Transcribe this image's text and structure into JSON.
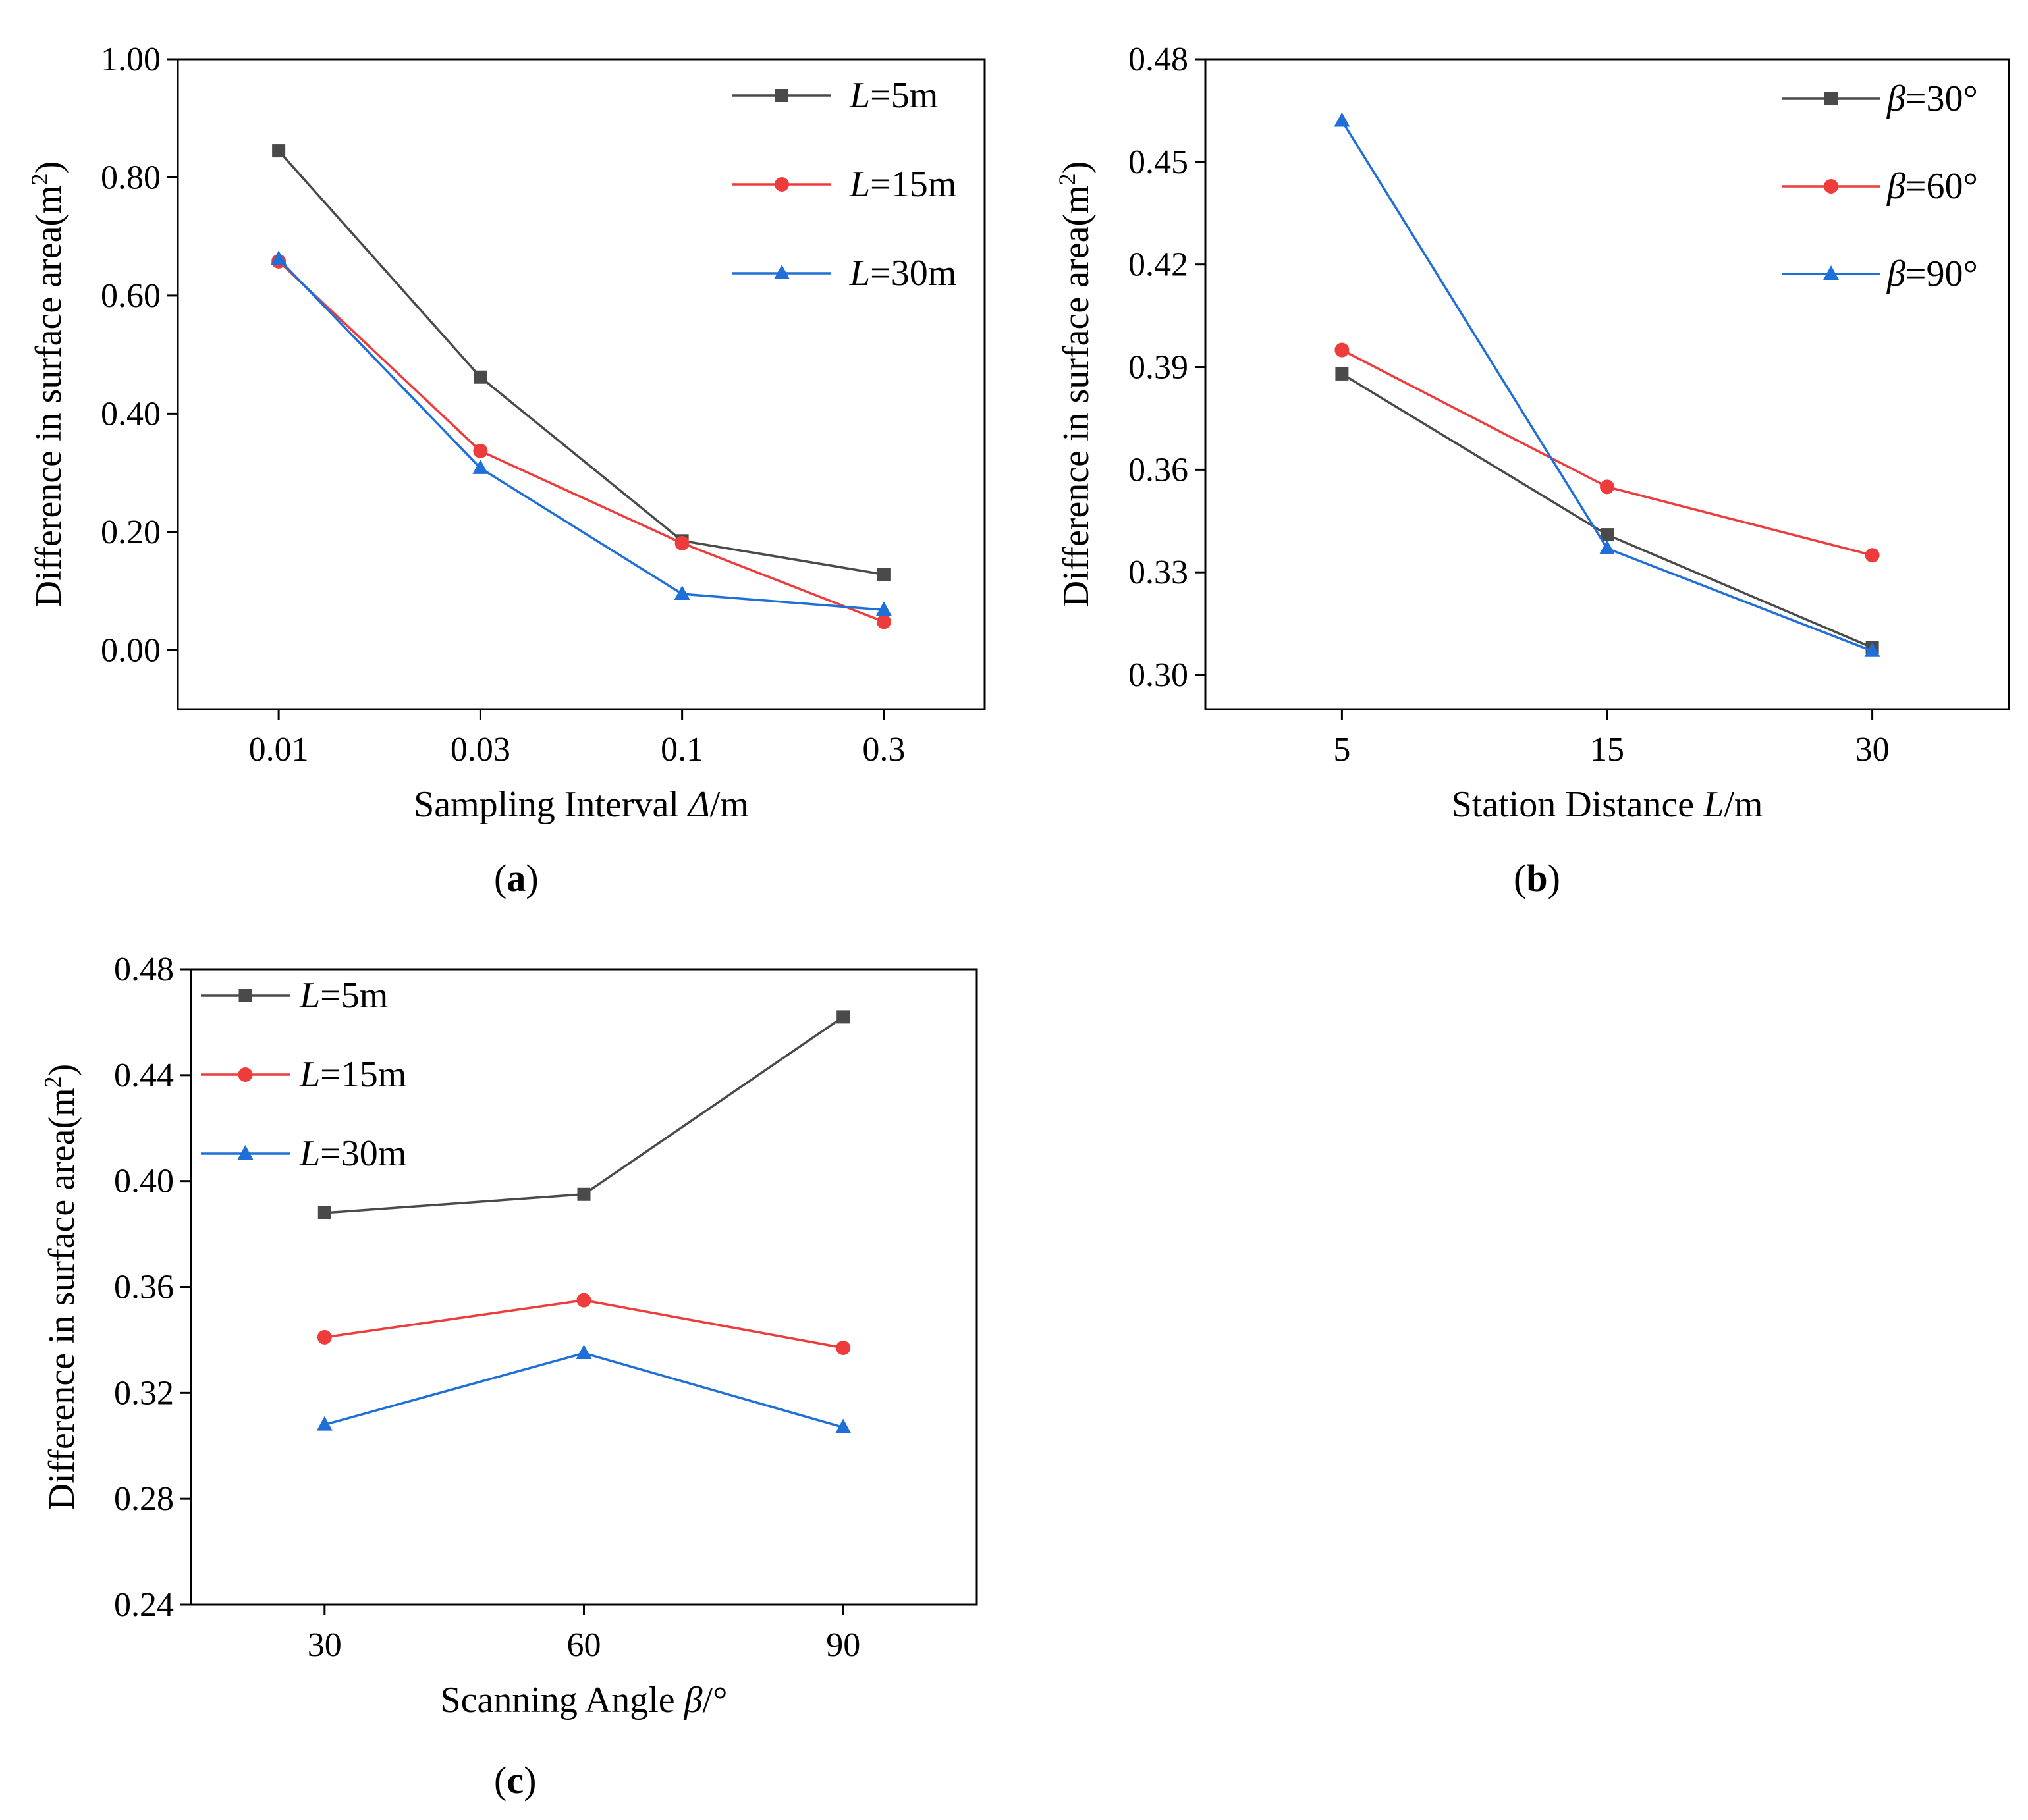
{
  "chart_data": [
    {
      "type": "line",
      "panel_label": "a",
      "categories": [
        "0.01",
        "0.03",
        "0.1",
        "0.3"
      ],
      "ylim": [
        -0.1,
        1.0
      ],
      "yticks": [
        0.0,
        0.2,
        0.4,
        0.6,
        0.8,
        1.0
      ],
      "ytick_labels": [
        "0.00",
        "0.20",
        "0.40",
        "0.60",
        "0.80",
        "1.00"
      ],
      "xlabel_parts": [
        "Sampling Interval  ",
        "Δ",
        "/m"
      ],
      "ylabel": "Difference in surface area(m",
      "ylabel_sup": "2",
      "ylabel_close": ")",
      "legend_position": "top-right",
      "series": [
        {
          "name_var": "L",
          "name_rest": "=5m",
          "color": "#4a4a4a",
          "marker": "square",
          "values": [
            0.845,
            0.462,
            0.185,
            0.128
          ]
        },
        {
          "name_var": "L",
          "name_rest": "=15m",
          "color": "#ee3b3b",
          "marker": "circle",
          "values": [
            0.658,
            0.337,
            0.181,
            0.048
          ]
        },
        {
          "name_var": "L",
          "name_rest": "=30m",
          "color": "#1f6fd8",
          "marker": "triangle",
          "values": [
            0.662,
            0.308,
            0.095,
            0.068
          ]
        }
      ]
    },
    {
      "type": "line",
      "panel_label": "b",
      "categories": [
        "5",
        "15",
        "30"
      ],
      "ylim": [
        0.29,
        0.48
      ],
      "yticks": [
        0.3,
        0.33,
        0.36,
        0.39,
        0.42,
        0.45,
        0.48
      ],
      "ytick_labels": [
        "0.30",
        "0.33",
        "0.36",
        "0.39",
        "0.42",
        "0.45",
        "0.48"
      ],
      "xlabel_parts": [
        "Station Distance  ",
        "L",
        "/m"
      ],
      "ylabel": "Difference in surface area(m",
      "ylabel_sup": "2",
      "ylabel_close": ")",
      "legend_position": "top-right",
      "series": [
        {
          "name_var": "β",
          "name_rest": "=30°",
          "color": "#4a4a4a",
          "marker": "square",
          "values": [
            0.388,
            0.341,
            0.308
          ]
        },
        {
          "name_var": "β",
          "name_rest": "=60°",
          "color": "#ee3b3b",
          "marker": "circle",
          "values": [
            0.395,
            0.355,
            0.335
          ]
        },
        {
          "name_var": "β",
          "name_rest": "=90°",
          "color": "#1f6fd8",
          "marker": "triangle",
          "values": [
            0.462,
            0.337,
            0.307
          ]
        }
      ]
    },
    {
      "type": "line",
      "panel_label": "c",
      "categories": [
        "30",
        "60",
        "90"
      ],
      "ylim": [
        0.24,
        0.48
      ],
      "yticks": [
        0.24,
        0.28,
        0.32,
        0.36,
        0.4,
        0.44,
        0.48
      ],
      "ytick_labels": [
        "0.24",
        "0.28",
        "0.32",
        "0.36",
        "0.40",
        "0.44",
        "0.48"
      ],
      "xlabel_parts": [
        "Scanning Angle  ",
        "β",
        "/°"
      ],
      "ylabel": "Difference in surface area(m",
      "ylabel_sup": "2",
      "ylabel_close": ")",
      "legend_position": "top-left",
      "series": [
        {
          "name_var": "L",
          "name_rest": "=5m",
          "color": "#4a4a4a",
          "marker": "square",
          "values": [
            0.388,
            0.395,
            0.462
          ]
        },
        {
          "name_var": "L",
          "name_rest": "=15m",
          "color": "#ee3b3b",
          "marker": "circle",
          "values": [
            0.341,
            0.355,
            0.337
          ]
        },
        {
          "name_var": "L",
          "name_rest": "=30m",
          "color": "#1f6fd8",
          "marker": "triangle",
          "values": [
            0.308,
            0.335,
            0.307
          ]
        }
      ]
    }
  ]
}
